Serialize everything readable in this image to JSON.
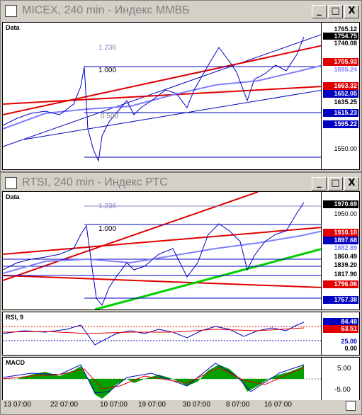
{
  "window1": {
    "title": "MICEX, 240 min - Индекс ММВБ",
    "tag": "Data",
    "scale_labels": [
      "1765.12",
      "1754.75",
      "1740.08",
      "1705.93",
      "1695.24",
      "1663.32",
      "1652.05",
      "1635.25",
      "1615.23",
      "1595.22",
      "1550.00"
    ],
    "fib_labels": [
      "1.236",
      "1.000",
      "0.500"
    ]
  },
  "window2": {
    "title": "RTSI, 240 min - Индекс РТС",
    "tag": "Data",
    "scale_labels": [
      "1970.69",
      "1950.00",
      "1910.10",
      "1897.68",
      "1882.89",
      "1860.49",
      "1839.20",
      "1817.90",
      "1796.06",
      "1767.38"
    ],
    "fib_labels": [
      "1.236",
      "1.000"
    ],
    "rsi_tag": "RSI, 9",
    "rsi_labels": [
      "84.48",
      "63.51",
      "25.00",
      "0.00"
    ],
    "macd_tag": "MACD",
    "macd_labels": [
      "5.00",
      "-5.00"
    ],
    "x_labels": [
      "13 07:00",
      "22 07:00",
      "10 07:00",
      "19 07:00",
      "30 07:00",
      "8 07:00",
      "16 07:00"
    ]
  },
  "buttons": {
    "minimize": "_",
    "maximize": "□",
    "close": "X"
  },
  "colors": {
    "accent_red": "#e00000",
    "price_blue": "#0000c0",
    "ma_light": "#8080ff",
    "trend_green": "#00d000"
  }
}
